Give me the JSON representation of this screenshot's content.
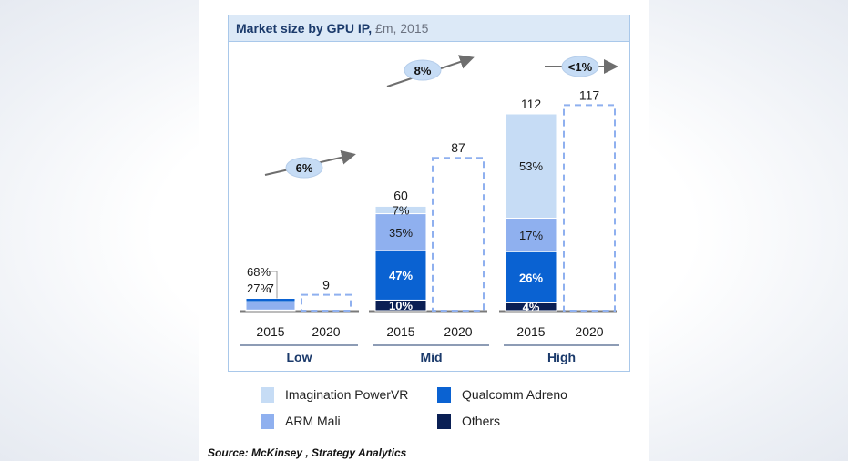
{
  "title": "Market size by GPU IP,",
  "title_unit": "£m, 2015",
  "source": "Source: McKinsey , Strategy Analytics",
  "colors": {
    "imagination": "#c6dcf5",
    "arm": "#8fb0ef",
    "qualcomm": "#0a62d2",
    "others": "#0a1f54",
    "arrow_ellipse": "#c6dcf5",
    "dashed": "#8fb0ef"
  },
  "legend": [
    {
      "key": "imagination",
      "label": "Imagination PowerVR"
    },
    {
      "key": "qualcomm",
      "label": "Qualcomm Adreno"
    },
    {
      "key": "arm",
      "label": "ARM Mali"
    },
    {
      "key": "others",
      "label": "Others"
    }
  ],
  "chart_data": {
    "type": "bar",
    "stacked": true,
    "ylim": [
      0,
      117
    ],
    "groups": [
      {
        "label": "Low",
        "cagr": "6%",
        "bars": [
          {
            "year": "2015",
            "total": "7",
            "actual": true,
            "segments": [
              {
                "series": "imagination",
                "share": 0.05,
                "label": ""
              },
              {
                "series": "arm",
                "share": 0.68,
                "label": "68%"
              },
              {
                "series": "qualcomm",
                "share": 0.27,
                "label": "27%"
              }
            ]
          },
          {
            "year": "2020",
            "total": "9",
            "actual": false,
            "segments": []
          }
        ]
      },
      {
        "label": "Mid",
        "cagr": "8%",
        "bars": [
          {
            "year": "2015",
            "total": "60",
            "actual": true,
            "segments": [
              {
                "series": "others",
                "share": 0.1,
                "label": "10%"
              },
              {
                "series": "qualcomm",
                "share": 0.47,
                "label": "47%"
              },
              {
                "series": "arm",
                "share": 0.35,
                "label": "35%"
              },
              {
                "series": "imagination",
                "share": 0.07,
                "label": "7%"
              }
            ]
          },
          {
            "year": "2020",
            "total": "87",
            "actual": false,
            "segments": []
          }
        ]
      },
      {
        "label": "High",
        "cagr": "<1%",
        "bars": [
          {
            "year": "2015",
            "total": "112",
            "actual": true,
            "segments": [
              {
                "series": "others",
                "share": 0.04,
                "label": "4%"
              },
              {
                "series": "qualcomm",
                "share": 0.26,
                "label": "26%"
              },
              {
                "series": "arm",
                "share": 0.17,
                "label": "17%"
              },
              {
                "series": "imagination",
                "share": 0.53,
                "label": "53%"
              }
            ]
          },
          {
            "year": "2020",
            "total": "117",
            "actual": false,
            "segments": []
          }
        ]
      }
    ],
    "series": [
      {
        "key": "imagination",
        "name": "Imagination PowerVR"
      },
      {
        "key": "arm",
        "name": "ARM Mali"
      },
      {
        "key": "qualcomm",
        "name": "Qualcomm Adreno"
      },
      {
        "key": "others",
        "name": "Others"
      }
    ]
  }
}
